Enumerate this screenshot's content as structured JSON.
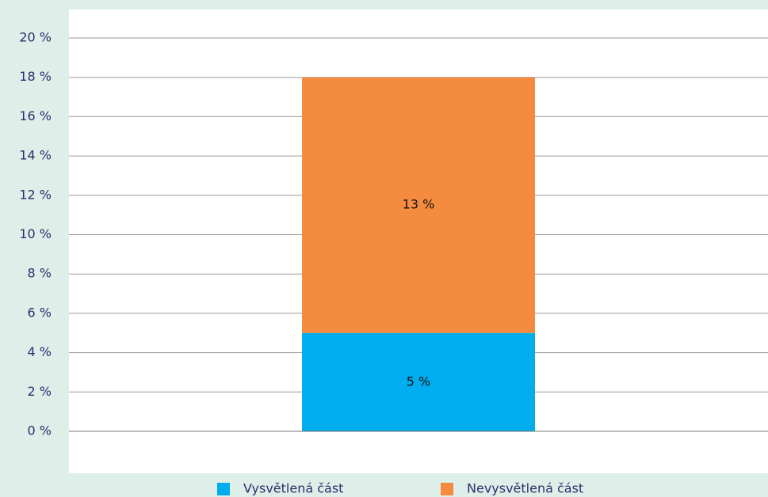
{
  "chart_data": {
    "type": "stacked_bar",
    "categories": [
      null
    ],
    "series": [
      {
        "name": "Vysvětlená část",
        "color": "#00aeef",
        "values": [
          5
        ],
        "value_labels": [
          "5 %"
        ]
      },
      {
        "name": "Nevysvětlená část",
        "color": "#f58b3f",
        "values": [
          13
        ],
        "value_labels": [
          "13 %"
        ]
      }
    ],
    "ylim": [
      0,
      20
    ],
    "yticks": [
      {
        "value": 0,
        "label": "0 %"
      },
      {
        "value": 2,
        "label": "2 %"
      },
      {
        "value": 4,
        "label": "4 %"
      },
      {
        "value": 6,
        "label": "6 %"
      },
      {
        "value": 8,
        "label": "8 %"
      },
      {
        "value": 10,
        "label": "10 %"
      },
      {
        "value": 12,
        "label": "12 %"
      },
      {
        "value": 14,
        "label": "14 %"
      },
      {
        "value": 16,
        "label": "16 %"
      },
      {
        "value": 18,
        "label": "18 %"
      },
      {
        "value": 20,
        "label": "20 %"
      }
    ],
    "grid": true,
    "legend": "bottom"
  }
}
